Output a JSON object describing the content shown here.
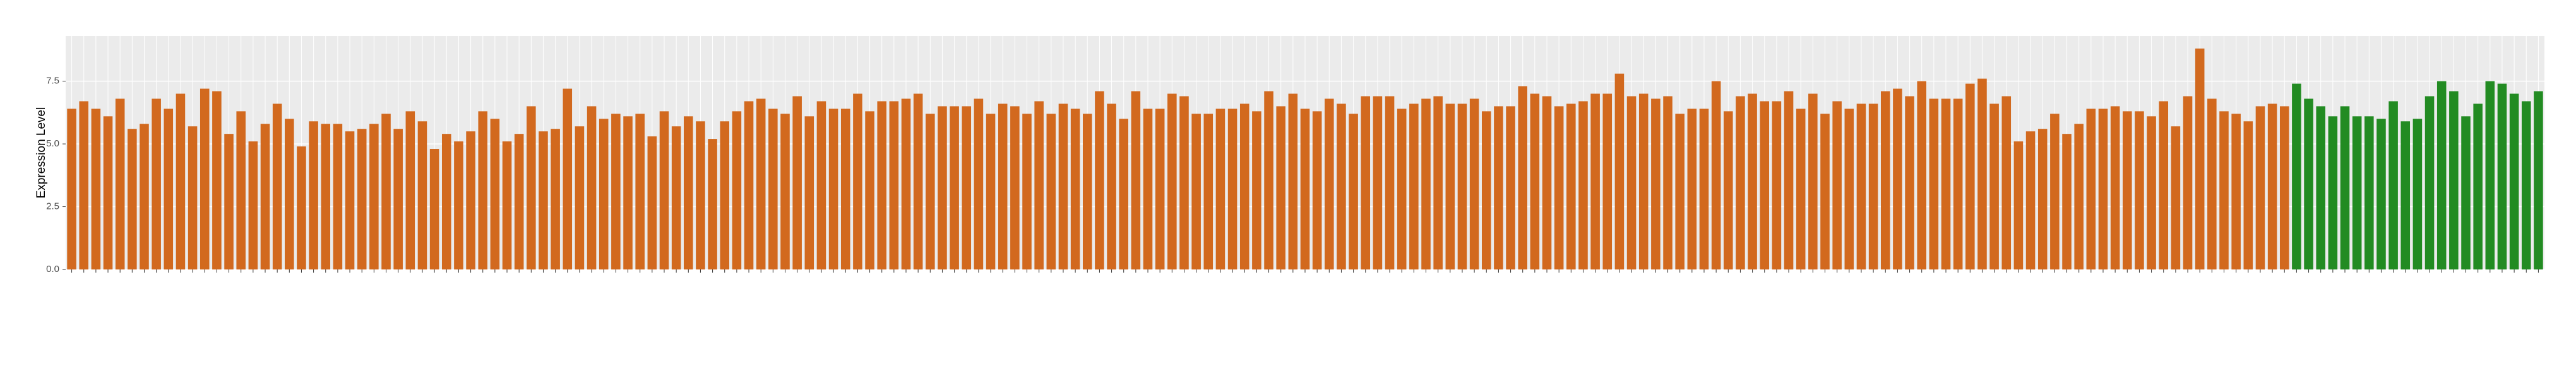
{
  "chart_data": {
    "type": "bar",
    "y_label": "Expression Level",
    "ylim": [
      0,
      9.3
    ],
    "yticks": [
      {
        "value": 0,
        "label": "0.0"
      },
      2.5,
      {
        "value": 5,
        "label": "5.0"
      },
      7.5
    ],
    "grid": true,
    "categories": [
      null,
      null,
      null,
      null,
      null,
      null,
      null,
      null,
      null,
      null,
      null,
      null,
      null,
      null,
      null,
      null,
      null,
      null,
      null,
      null,
      null,
      null,
      null,
      null,
      null,
      null,
      null,
      null,
      null,
      null,
      null,
      null,
      null,
      null,
      null,
      null,
      null,
      null,
      null,
      null,
      null,
      null,
      null,
      null,
      null,
      null,
      null,
      null,
      null,
      null,
      null,
      null,
      null,
      null,
      null,
      null,
      null,
      null,
      null,
      null,
      null,
      null,
      null,
      null,
      null,
      null,
      null,
      null,
      null,
      null,
      null,
      null,
      null,
      null,
      null,
      null,
      null,
      null,
      null,
      null,
      null,
      null,
      null,
      null,
      null,
      null,
      null,
      null,
      null,
      null,
      null,
      null,
      null,
      null,
      null,
      null,
      null,
      null,
      null,
      null,
      null,
      null,
      null,
      null,
      null,
      null,
      null,
      null,
      null,
      null,
      null,
      null,
      null,
      null,
      null,
      null,
      null,
      null,
      null,
      null,
      null,
      null,
      null,
      null,
      null,
      null,
      null,
      null,
      null,
      null,
      null,
      null,
      null,
      null,
      null,
      null,
      null,
      null,
      null,
      null,
      null,
      null,
      null,
      null,
      null,
      null,
      null,
      null,
      null,
      null,
      null,
      null,
      null,
      null,
      null,
      null,
      null,
      null,
      null,
      null,
      null,
      null,
      null,
      null,
      null,
      null,
      null,
      null,
      null,
      null,
      null,
      null,
      null,
      null,
      null,
      null,
      null,
      null,
      null,
      null,
      null,
      null,
      null,
      null,
      null,
      null,
      null,
      null,
      null,
      null,
      null,
      null,
      null,
      null,
      null,
      null,
      null,
      null,
      null,
      null,
      null,
      null,
      null,
      null,
      null
    ],
    "values": [
      6.4,
      6.7,
      6.4,
      6.1,
      6.8,
      5.6,
      5.8,
      6.8,
      6.4,
      7.0,
      5.7,
      7.2,
      7.1,
      5.4,
      6.3,
      5.1,
      5.8,
      6.6,
      6.0,
      4.9,
      5.9,
      5.8,
      5.8,
      5.5,
      5.6,
      5.8,
      6.2,
      5.6,
      6.3,
      5.9,
      4.8,
      5.4,
      5.1,
      5.5,
      6.3,
      6.0,
      5.1,
      5.4,
      6.5,
      5.5,
      5.6,
      7.2,
      5.7,
      6.5,
      6.0,
      6.2,
      6.1,
      6.2,
      5.3,
      6.3,
      5.7,
      6.1,
      5.9,
      5.2,
      5.9,
      6.3,
      6.7,
      6.8,
      6.4,
      6.2,
      6.9,
      6.1,
      6.7,
      6.4,
      6.4,
      7.0,
      6.3,
      6.7,
      6.7,
      6.8,
      7.0,
      6.2,
      6.5,
      6.5,
      6.5,
      6.8,
      6.2,
      6.6,
      6.5,
      6.2,
      6.7,
      6.2,
      6.6,
      6.4,
      6.2,
      7.1,
      6.6,
      6.0,
      7.1,
      6.4,
      6.4,
      7.0,
      6.9,
      6.2,
      6.2,
      6.4,
      6.4,
      6.6,
      6.3,
      7.1,
      6.5,
      7.0,
      6.4,
      6.3,
      6.8,
      6.6,
      6.2,
      6.9,
      6.9,
      6.9,
      6.4,
      6.6,
      6.8,
      6.9,
      6.6,
      6.6,
      6.8,
      6.3,
      6.5,
      6.5,
      7.3,
      7.0,
      6.9,
      6.5,
      6.6,
      6.7,
      7.0,
      7.0,
      7.8,
      6.9,
      7.0,
      6.8,
      6.9,
      6.2,
      6.4,
      6.4,
      7.5,
      6.3,
      6.9,
      7.0,
      6.7,
      6.7,
      7.1,
      6.4,
      7.0,
      6.2,
      6.7,
      6.4,
      6.6,
      6.6,
      7.1,
      7.2,
      6.9,
      7.5,
      6.8,
      6.8,
      6.8,
      7.4,
      7.6,
      6.6,
      6.9,
      5.1,
      5.5,
      5.6,
      6.2,
      5.4,
      5.8,
      6.4,
      6.4,
      6.5,
      6.3,
      6.3,
      6.1,
      6.7,
      5.7,
      6.9,
      8.8,
      6.8,
      6.3,
      6.2,
      5.9,
      6.5,
      6.6,
      6.5,
      7.4,
      6.8,
      6.5,
      6.1,
      6.5,
      6.1,
      6.1,
      6.0,
      6.7,
      5.9,
      6.0,
      6.9,
      7.5,
      7.1,
      6.1,
      6.6,
      7.5,
      7.4,
      7.0,
      6.7,
      7.1
    ],
    "colors": [
      "#d2691e",
      "#d2691e",
      "#d2691e",
      "#d2691e",
      "#d2691e",
      "#d2691e",
      "#d2691e",
      "#d2691e",
      "#d2691e",
      "#d2691e",
      "#d2691e",
      "#d2691e",
      "#d2691e",
      "#d2691e",
      "#d2691e",
      "#d2691e",
      "#d2691e",
      "#d2691e",
      "#d2691e",
      "#d2691e",
      "#d2691e",
      "#d2691e",
      "#d2691e",
      "#d2691e",
      "#d2691e",
      "#d2691e",
      "#d2691e",
      "#d2691e",
      "#d2691e",
      "#d2691e",
      "#d2691e",
      "#d2691e",
      "#d2691e",
      "#d2691e",
      "#d2691e",
      "#d2691e",
      "#d2691e",
      "#d2691e",
      "#d2691e",
      "#d2691e",
      "#d2691e",
      "#d2691e",
      "#d2691e",
      "#d2691e",
      "#d2691e",
      "#d2691e",
      "#d2691e",
      "#d2691e",
      "#d2691e",
      "#d2691e",
      "#d2691e",
      "#d2691e",
      "#d2691e",
      "#d2691e",
      "#d2691e",
      "#d2691e",
      "#d2691e",
      "#d2691e",
      "#d2691e",
      "#d2691e",
      "#d2691e",
      "#d2691e",
      "#d2691e",
      "#d2691e",
      "#d2691e",
      "#d2691e",
      "#d2691e",
      "#d2691e",
      "#d2691e",
      "#d2691e",
      "#d2691e",
      "#d2691e",
      "#d2691e",
      "#d2691e",
      "#d2691e",
      "#d2691e",
      "#d2691e",
      "#d2691e",
      "#d2691e",
      "#d2691e",
      "#d2691e",
      "#d2691e",
      "#d2691e",
      "#d2691e",
      "#d2691e",
      "#d2691e",
      "#d2691e",
      "#d2691e",
      "#d2691e",
      "#d2691e",
      "#d2691e",
      "#d2691e",
      "#d2691e",
      "#d2691e",
      "#d2691e",
      "#d2691e",
      "#d2691e",
      "#d2691e",
      "#d2691e",
      "#d2691e",
      "#d2691e",
      "#d2691e",
      "#d2691e",
      "#d2691e",
      "#d2691e",
      "#d2691e",
      "#d2691e",
      "#d2691e",
      "#d2691e",
      "#d2691e",
      "#d2691e",
      "#d2691e",
      "#d2691e",
      "#d2691e",
      "#d2691e",
      "#d2691e",
      "#d2691e",
      "#d2691e",
      "#d2691e",
      "#d2691e",
      "#d2691e",
      "#d2691e",
      "#d2691e",
      "#d2691e",
      "#d2691e",
      "#d2691e",
      "#d2691e",
      "#d2691e",
      "#d2691e",
      "#d2691e",
      "#d2691e",
      "#d2691e",
      "#d2691e",
      "#d2691e",
      "#d2691e",
      "#d2691e",
      "#d2691e",
      "#d2691e",
      "#d2691e",
      "#d2691e",
      "#d2691e",
      "#d2691e",
      "#d2691e",
      "#d2691e",
      "#d2691e",
      "#d2691e",
      "#d2691e",
      "#d2691e",
      "#d2691e",
      "#d2691e",
      "#d2691e",
      "#d2691e",
      "#d2691e",
      "#d2691e",
      "#d2691e",
      "#d2691e",
      "#d2691e",
      "#d2691e",
      "#d2691e",
      "#d2691e",
      "#d2691e",
      "#d2691e",
      "#d2691e",
      "#d2691e",
      "#d2691e",
      "#d2691e",
      "#d2691e",
      "#d2691e",
      "#d2691e",
      "#d2691e",
      "#d2691e",
      "#d2691e",
      "#d2691e",
      "#d2691e",
      "#d2691e",
      "#d2691e",
      "#d2691e",
      "#d2691e",
      "#d2691e",
      "#d2691e",
      "#d2691e",
      "#d2691e",
      "#d2691e",
      "#d2691e",
      "#228b22",
      "#228b22",
      "#228b22",
      "#228b22",
      "#228b22",
      "#228b22",
      "#228b22",
      "#228b22",
      "#228b22",
      "#228b22",
      "#228b22",
      "#228b22",
      "#228b22",
      "#228b22",
      "#228b22",
      "#228b22",
      "#228b22",
      "#228b22",
      "#228b22",
      "#228b22",
      "#228b22"
    ]
  }
}
